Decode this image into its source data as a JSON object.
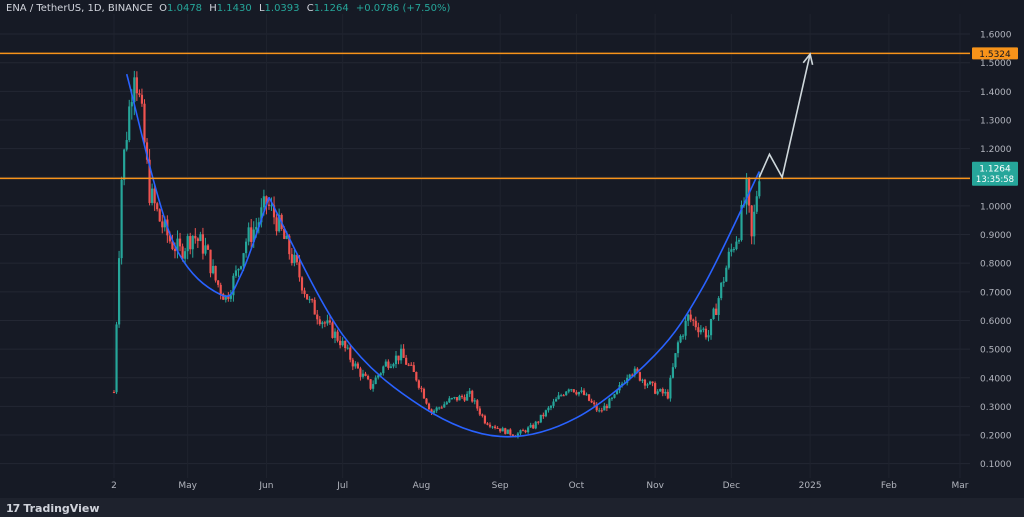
{
  "header": {
    "symbol": "ENA / TetherUS, 1D, BINANCE",
    "o_label": "O",
    "o": "1.0478",
    "h_label": "H",
    "h": "1.1430",
    "l_label": "L",
    "l": "1.0393",
    "c_label": "C",
    "c": "1.1264",
    "change": "+0.0786 (+7.50%)"
  },
  "branding": {
    "logo_mark": "17",
    "name": "TradingView"
  },
  "colors": {
    "background": "#161a25",
    "up": "#26a69a",
    "down": "#ef5350",
    "level": "#f7931a",
    "curve": "#2962ff",
    "projection": "#cfd8dc",
    "axis_text": "#b2b5be"
  },
  "chart_data": {
    "type": "candlestick",
    "title": "",
    "y_axis": {
      "ticks": [
        0.1,
        0.2,
        0.3,
        0.4,
        0.5,
        0.6,
        0.7,
        0.8,
        0.9,
        1.0,
        1.1,
        1.2,
        1.3,
        1.4,
        1.5,
        1.6
      ],
      "tick_labels": [
        "0.1000",
        "0.2000",
        "0.3000",
        "0.4000",
        "0.5000",
        "0.6000",
        "0.7000",
        "0.8000",
        "0.9000",
        "1.0000",
        "1.1000",
        "1.2000",
        "1.3000",
        "1.4000",
        "1.5000",
        "1.6000"
      ],
      "range": [
        0.05,
        1.67
      ]
    },
    "x_axis": {
      "labels": [
        "2",
        "May",
        "Jun",
        "Jul",
        "Aug",
        "Sep",
        "Oct",
        "Nov",
        "Dec",
        "2025",
        "Feb",
        "Mar"
      ],
      "label_dates": [
        "2024-04-02",
        "2024-05-01",
        "2024-06-01",
        "2024-07-01",
        "2024-08-01",
        "2024-09-01",
        "2024-10-01",
        "2024-11-01",
        "2024-12-01",
        "2025-01-01",
        "2025-02-01",
        "2025-03-01"
      ]
    },
    "horizontal_levels": [
      {
        "value": 1.5324,
        "label": "1.5324"
      },
      {
        "value": 1.0959,
        "label": "1.0959"
      }
    ],
    "last_price": {
      "value": 1.1264,
      "label": "1.1264",
      "countdown": "13:35:58"
    },
    "close_path": [
      [
        "2024-04-02",
        0.35
      ],
      [
        "2024-04-05",
        1.1
      ],
      [
        "2024-04-10",
        1.5
      ],
      [
        "2024-04-13",
        1.3
      ],
      [
        "2024-04-16",
        1.05
      ],
      [
        "2024-04-20",
        0.95
      ],
      [
        "2024-04-24",
        0.88
      ],
      [
        "2024-04-28",
        0.84
      ],
      [
        "2024-05-03",
        0.9
      ],
      [
        "2024-05-08",
        0.85
      ],
      [
        "2024-05-12",
        0.74
      ],
      [
        "2024-05-16",
        0.68
      ],
      [
        "2024-05-20",
        0.76
      ],
      [
        "2024-05-24",
        0.88
      ],
      [
        "2024-05-28",
        0.93
      ],
      [
        "2024-06-01",
        1.01
      ],
      [
        "2024-06-05",
        0.95
      ],
      [
        "2024-06-09",
        0.86
      ],
      [
        "2024-06-13",
        0.78
      ],
      [
        "2024-06-18",
        0.66
      ],
      [
        "2024-06-24",
        0.59
      ],
      [
        "2024-06-30",
        0.53
      ],
      [
        "2024-07-06",
        0.44
      ],
      [
        "2024-07-12",
        0.37
      ],
      [
        "2024-07-18",
        0.45
      ],
      [
        "2024-07-24",
        0.48
      ],
      [
        "2024-07-30",
        0.4
      ],
      [
        "2024-08-05",
        0.28
      ],
      [
        "2024-08-12",
        0.32
      ],
      [
        "2024-08-20",
        0.34
      ],
      [
        "2024-08-26",
        0.25
      ],
      [
        "2024-09-01",
        0.22
      ],
      [
        "2024-09-07",
        0.2
      ],
      [
        "2024-09-14",
        0.23
      ],
      [
        "2024-09-22",
        0.31
      ],
      [
        "2024-09-28",
        0.37
      ],
      [
        "2024-10-04",
        0.34
      ],
      [
        "2024-10-10",
        0.28
      ],
      [
        "2024-10-16",
        0.33
      ],
      [
        "2024-10-22",
        0.43
      ],
      [
        "2024-10-28",
        0.39
      ],
      [
        "2024-11-02",
        0.35
      ],
      [
        "2024-11-06",
        0.34
      ],
      [
        "2024-11-10",
        0.52
      ],
      [
        "2024-11-14",
        0.61
      ],
      [
        "2024-11-18",
        0.58
      ],
      [
        "2024-11-22",
        0.55
      ],
      [
        "2024-11-26",
        0.68
      ],
      [
        "2024-11-30",
        0.82
      ],
      [
        "2024-12-04",
        0.92
      ],
      [
        "2024-12-07",
        1.05
      ],
      [
        "2024-12-09",
        0.88
      ],
      [
        "2024-12-11",
        1.0478
      ],
      [
        "2024-12-12",
        1.1264
      ]
    ],
    "curve_fits": [
      {
        "name": "",
        "points": [
          [
            "2024-04-07",
            1.46
          ],
          [
            "2024-04-25",
            0.88
          ],
          [
            "2024-05-14",
            0.69
          ],
          [
            "2024-05-22",
            0.76
          ],
          [
            "2024-06-02",
            1.03
          ]
        ]
      },
      {
        "name": "",
        "points": [
          [
            "2024-06-02",
            1.03
          ],
          [
            "2024-07-01",
            0.55
          ],
          [
            "2024-08-01",
            0.3
          ],
          [
            "2024-09-01",
            0.195
          ],
          [
            "2024-10-01",
            0.26
          ],
          [
            "2024-11-01",
            0.48
          ],
          [
            "2024-11-20",
            0.72
          ],
          [
            "2024-12-12",
            1.12
          ]
        ]
      }
    ],
    "projection": [
      [
        "2024-12-12",
        1.1
      ],
      [
        "2024-12-16",
        1.18
      ],
      [
        "2024-12-21",
        1.1
      ],
      [
        "2025-01-01",
        1.53
      ]
    ]
  }
}
